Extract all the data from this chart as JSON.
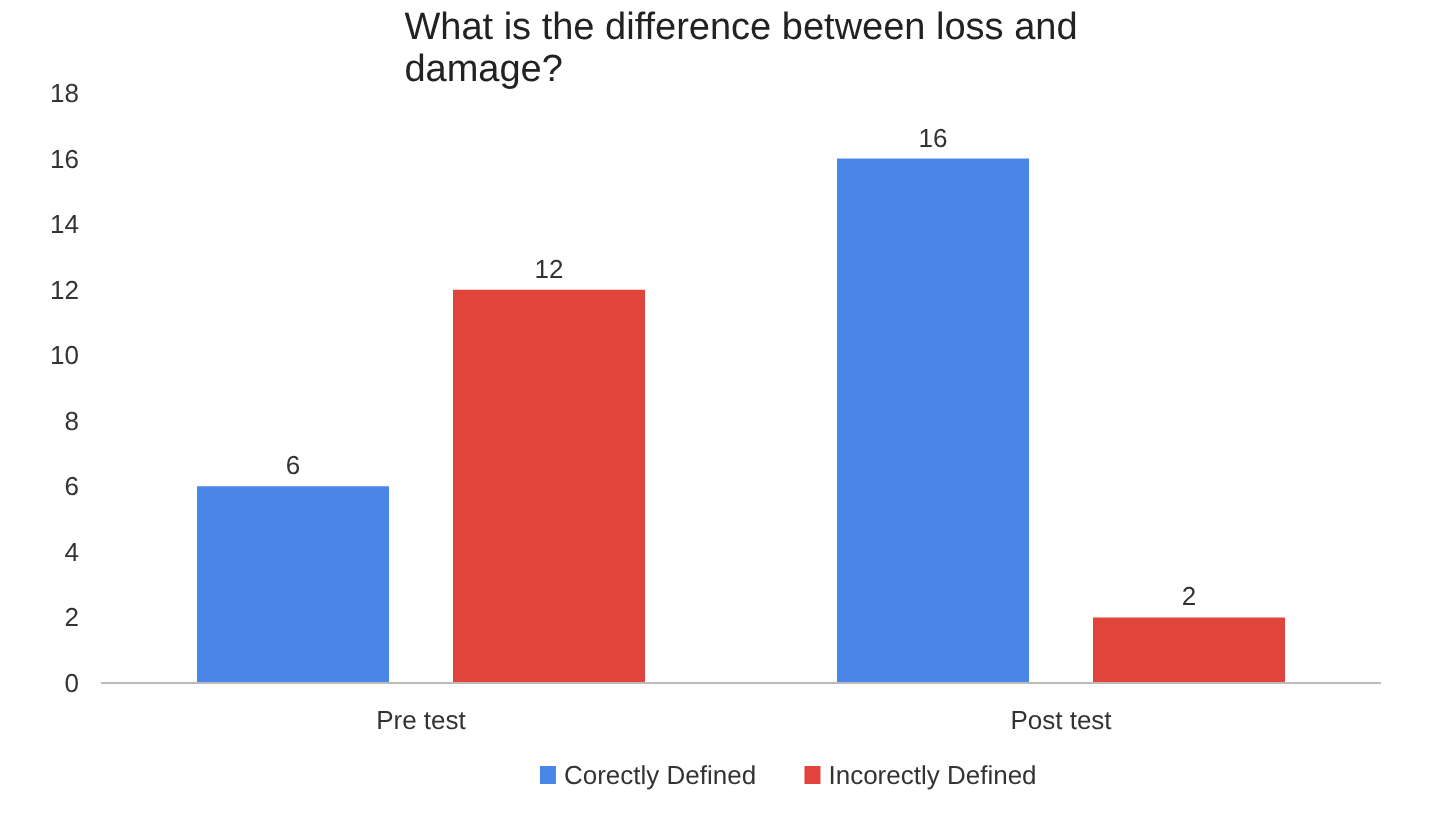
{
  "chart_data": {
    "type": "bar",
    "title": "What is the difference between loss and damage?",
    "categories": [
      "Pre test",
      "Post test"
    ],
    "series": [
      {
        "name": "Corectly Defined",
        "color": "#4a86e8",
        "values": [
          6,
          16
        ]
      },
      {
        "name": "Incorectly Defined",
        "color": "#e0443a",
        "values": [
          12,
          2
        ]
      }
    ],
    "ylim": [
      0,
      18
    ],
    "yticks": [
      0,
      2,
      4,
      6,
      8,
      10,
      12,
      14,
      16,
      18
    ],
    "data_labels": true,
    "grid": false,
    "legend": "bottom"
  }
}
